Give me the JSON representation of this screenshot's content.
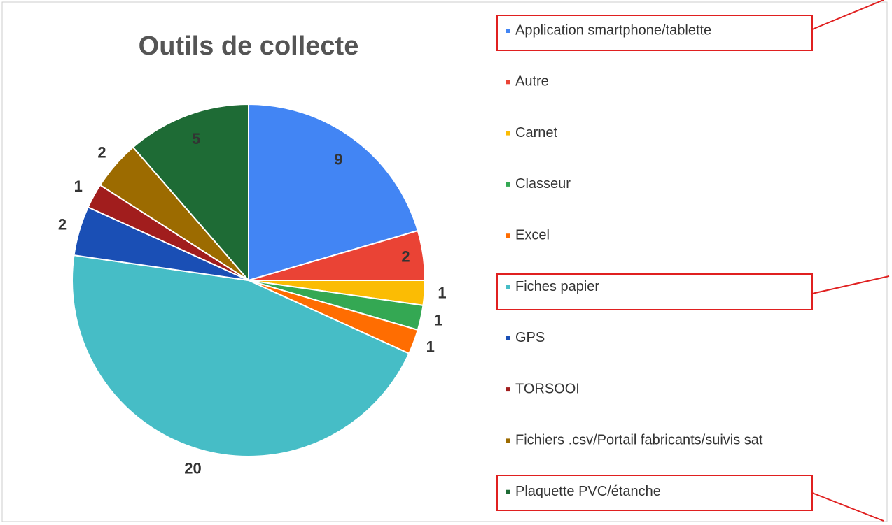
{
  "chart_data": {
    "type": "pie",
    "title": "Outils de collecte",
    "categories": [
      "Application smartphone/tablette",
      "Autre",
      "Carnet",
      "Classeur",
      "Excel",
      "Fiches papier",
      "GPS",
      "TORSOOI",
      "Fichiers .csv/Portail fabricants/suivis sat",
      "Plaquette PVC/étanche"
    ],
    "values": [
      9,
      2,
      1,
      1,
      1,
      20,
      2,
      1,
      2,
      5
    ],
    "colors": [
      "#4285f4",
      "#ea4335",
      "#fbbc04",
      "#34a853",
      "#ff6d01",
      "#46bdc6",
      "#1a4fb5",
      "#a11d1d",
      "#9c6b00",
      "#1e6b35"
    ],
    "legend": "right"
  }
}
